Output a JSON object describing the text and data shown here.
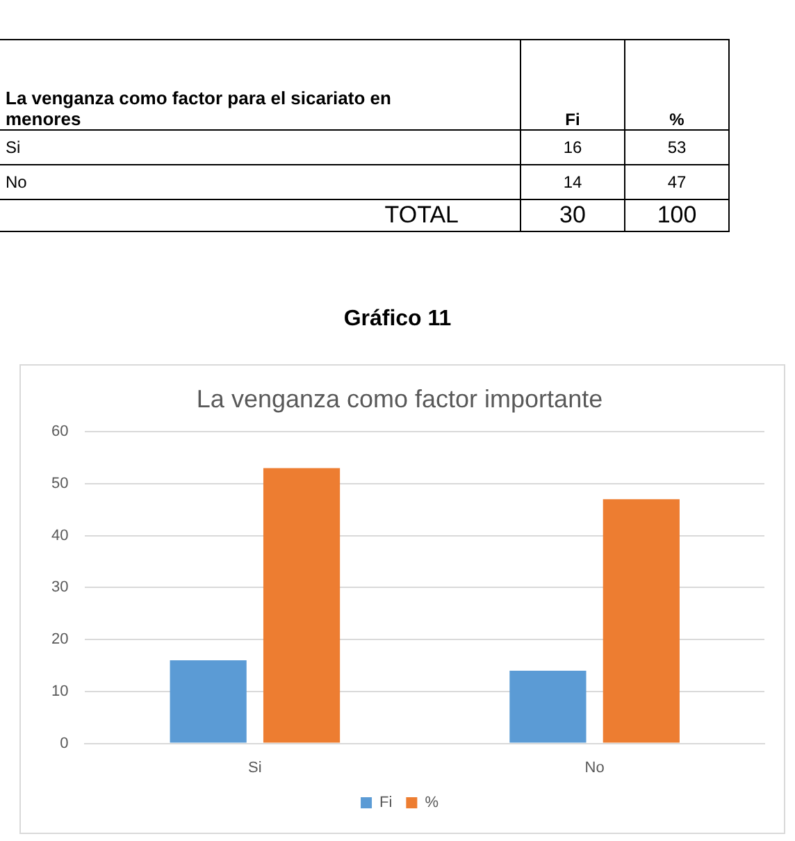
{
  "chart_data": {
    "type": "bar",
    "title": "La venganza como factor importante",
    "annotations": [
      "La venganza como factor para el sicariato en menores",
      "Fi",
      "%",
      "Si",
      "16",
      "53",
      "No",
      "14",
      "47",
      "TOTAL",
      "30",
      "100",
      "Gráfico 11"
    ],
    "categories": [
      "Si",
      "No"
    ],
    "series": [
      {
        "name": "Fi",
        "color": "#5b9bd5",
        "values": [
          16,
          14
        ]
      },
      {
        "name": "%",
        "color": "#ed7d31",
        "values": [
          53,
          47
        ]
      }
    ],
    "ylim": [
      0,
      60
    ],
    "yticks": [
      0,
      10,
      20,
      30,
      40,
      50,
      60
    ],
    "grid": "y",
    "legend": "bottom"
  }
}
